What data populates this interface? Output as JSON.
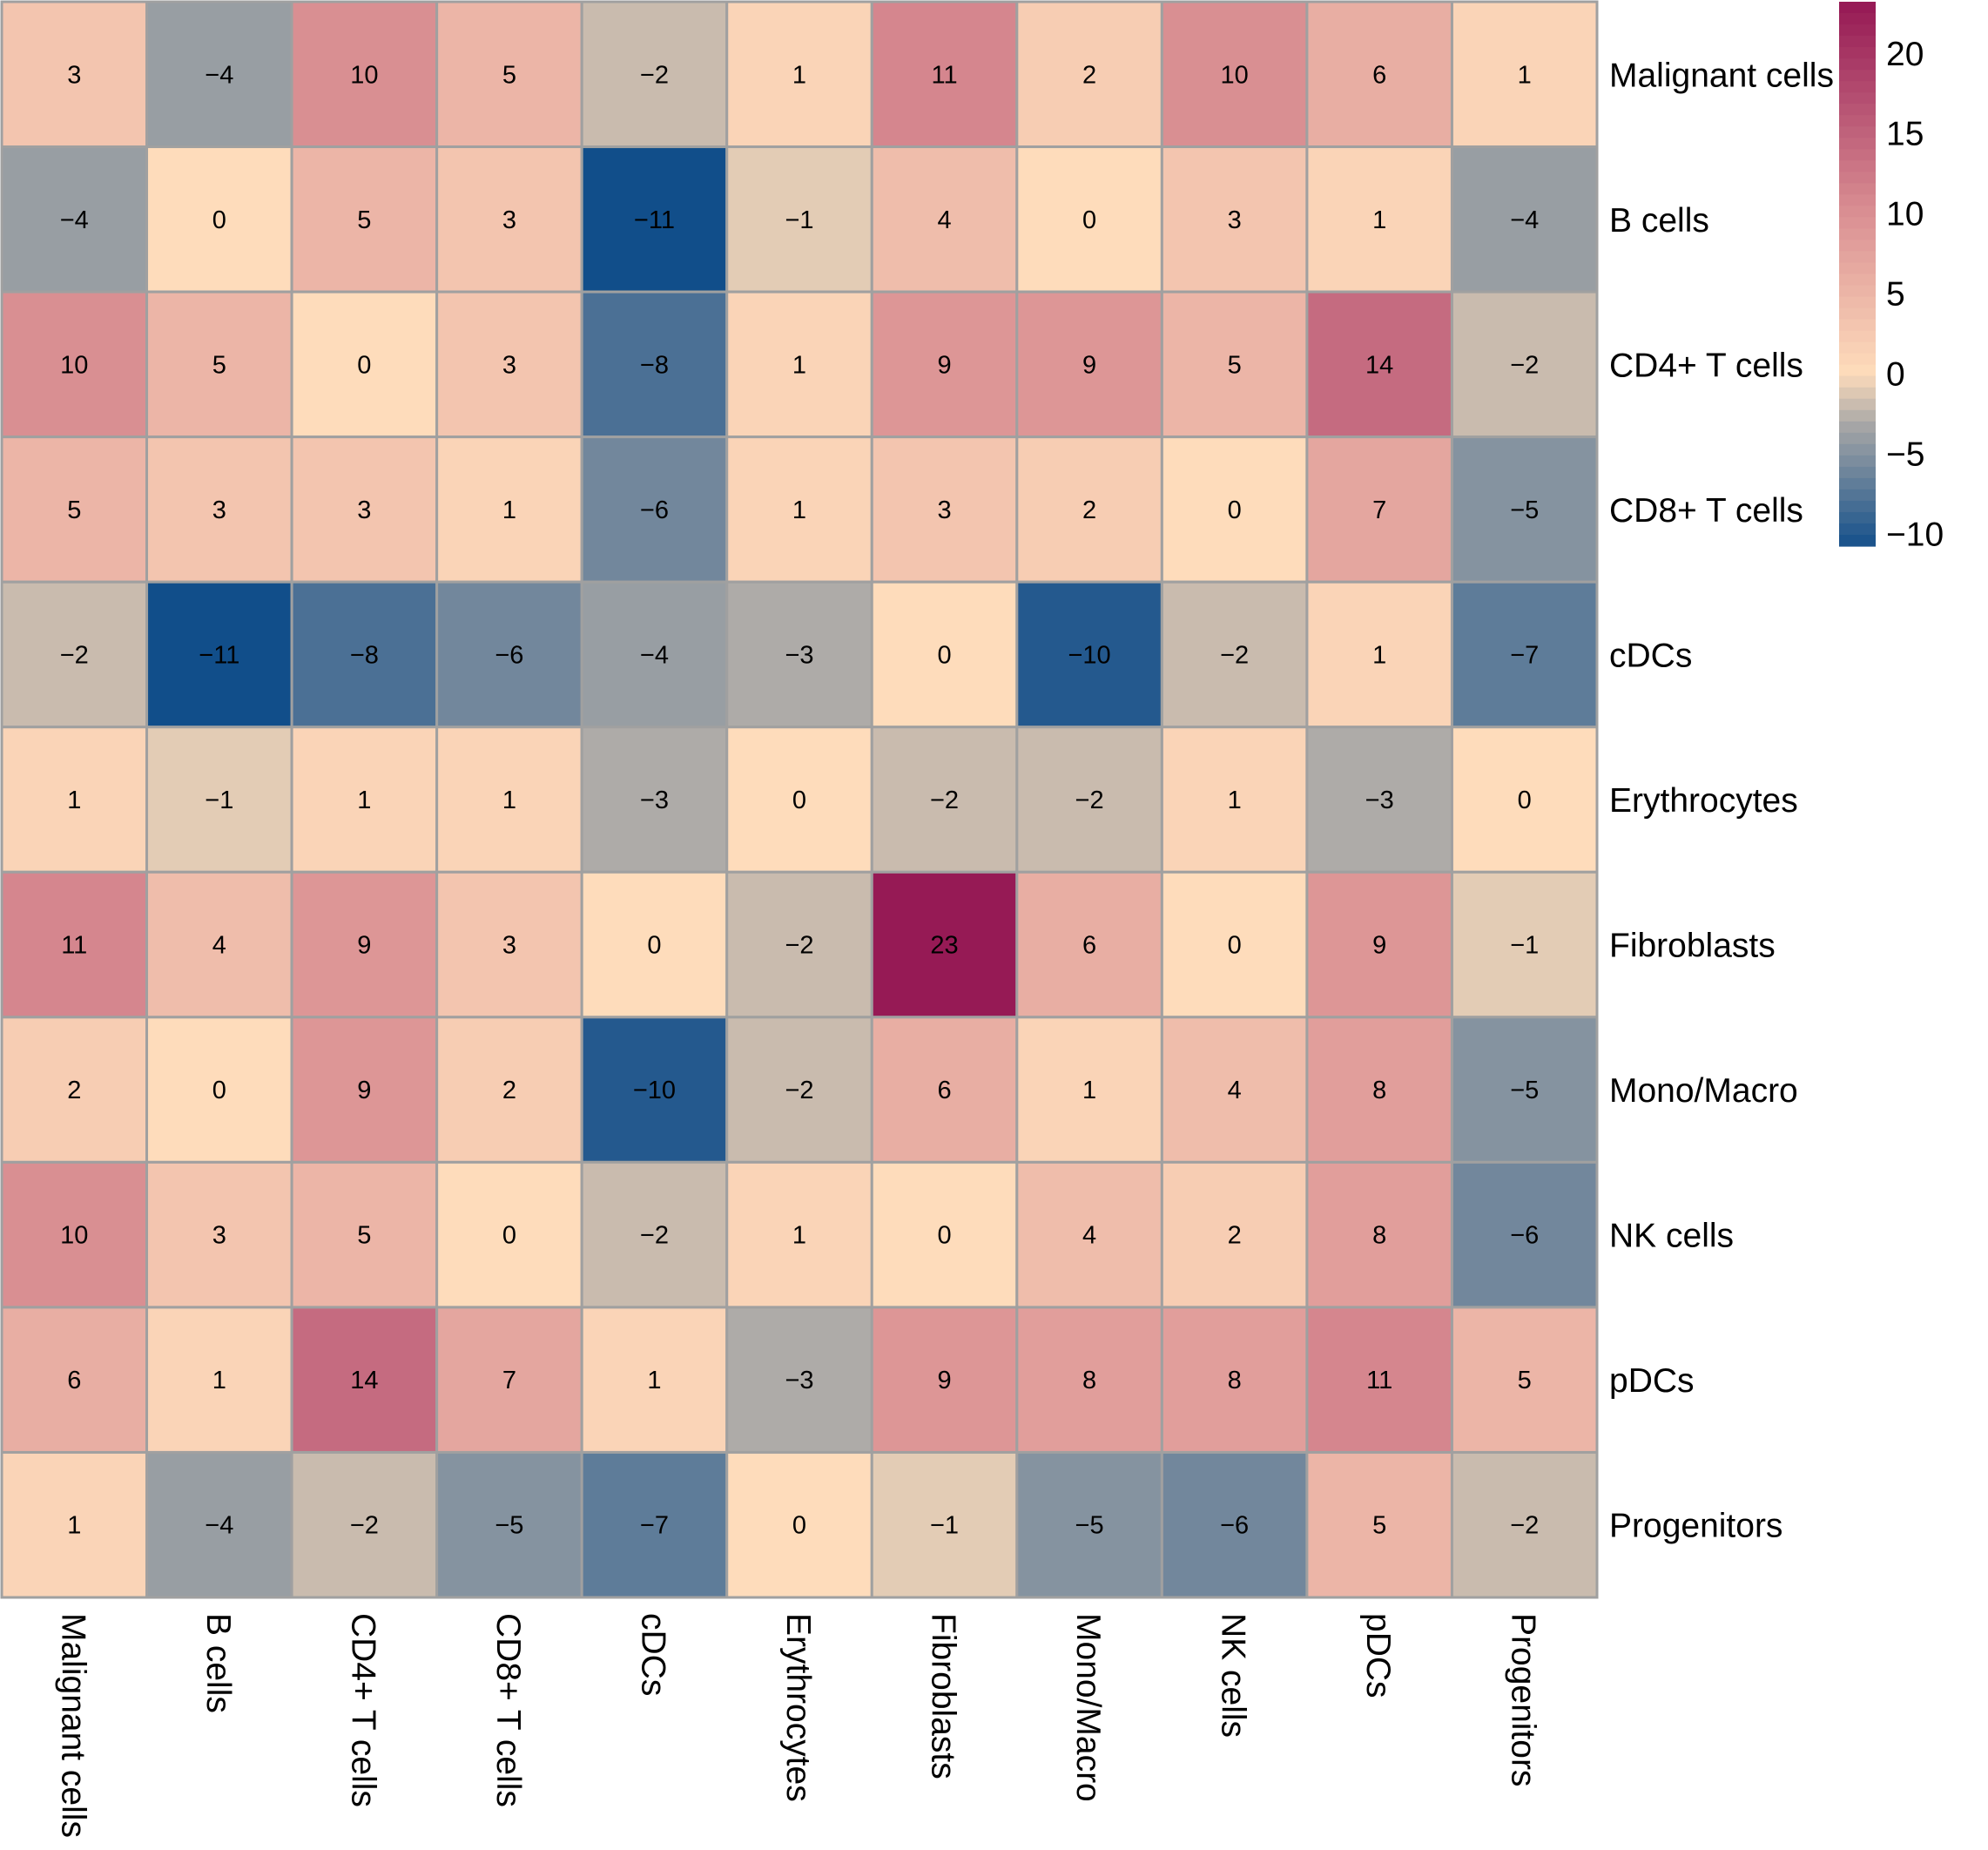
{
  "chart_data": {
    "type": "heatmap",
    "title": "",
    "xlabel": "",
    "ylabel": "",
    "rows": [
      "Malignant cells",
      "B cells",
      "CD4+ T cells",
      "CD8+ T cells",
      "cDCs",
      "Erythrocytes",
      "Fibroblasts",
      "Mono/Macro",
      "NK cells",
      "pDCs",
      "Progenitors"
    ],
    "columns": [
      "Malignant cells",
      "B cells",
      "CD4+ T cells",
      "CD8+ T cells",
      "cDCs",
      "Erythrocytes",
      "Fibroblasts",
      "Mono/Macro",
      "NK cells",
      "pDCs",
      "Progenitors"
    ],
    "values": [
      [
        3,
        -4,
        10,
        5,
        -2,
        1,
        11,
        2,
        10,
        6,
        1
      ],
      [
        -4,
        0,
        5,
        3,
        -11,
        -1,
        4,
        0,
        3,
        1,
        -4
      ],
      [
        10,
        5,
        0,
        3,
        -8,
        1,
        9,
        9,
        5,
        14,
        -2
      ],
      [
        5,
        3,
        3,
        1,
        -6,
        1,
        3,
        2,
        0,
        7,
        -5
      ],
      [
        -2,
        -11,
        -8,
        -6,
        -4,
        -3,
        0,
        -10,
        -2,
        1,
        -7
      ],
      [
        1,
        -1,
        1,
        1,
        -3,
        0,
        -2,
        -2,
        1,
        -3,
        0
      ],
      [
        11,
        4,
        9,
        3,
        0,
        -2,
        23,
        6,
        0,
        9,
        -1
      ],
      [
        2,
        0,
        9,
        2,
        -10,
        -2,
        6,
        1,
        4,
        8,
        -5
      ],
      [
        10,
        3,
        5,
        0,
        -2,
        1,
        0,
        4,
        2,
        8,
        -6
      ],
      [
        6,
        1,
        14,
        7,
        1,
        -3,
        9,
        8,
        8,
        11,
        5
      ],
      [
        1,
        -4,
        -2,
        -5,
        -7,
        0,
        -1,
        -5,
        -6,
        5,
        -2
      ]
    ],
    "row_label_position": "right",
    "column_label_position": "bottom",
    "column_label_rotation": "vertical",
    "colorbar": {
      "position": "top-right",
      "range": [
        -11,
        23
      ],
      "ticks": [
        20,
        15,
        10,
        5,
        0,
        -5,
        -10
      ],
      "tick_labels": [
        "20",
        "15",
        "10",
        "5",
        "0",
        "−5",
        "−10"
      ],
      "colors": {
        "min": "#114e8a",
        "neg_mid": "#a6a6a6",
        "zero": "#fedcbb",
        "pos_mid": "#d88c91",
        "max": "#961a55"
      }
    },
    "cell_border_color": "#a0a0a0",
    "grid": false,
    "legend": "colorbar"
  }
}
